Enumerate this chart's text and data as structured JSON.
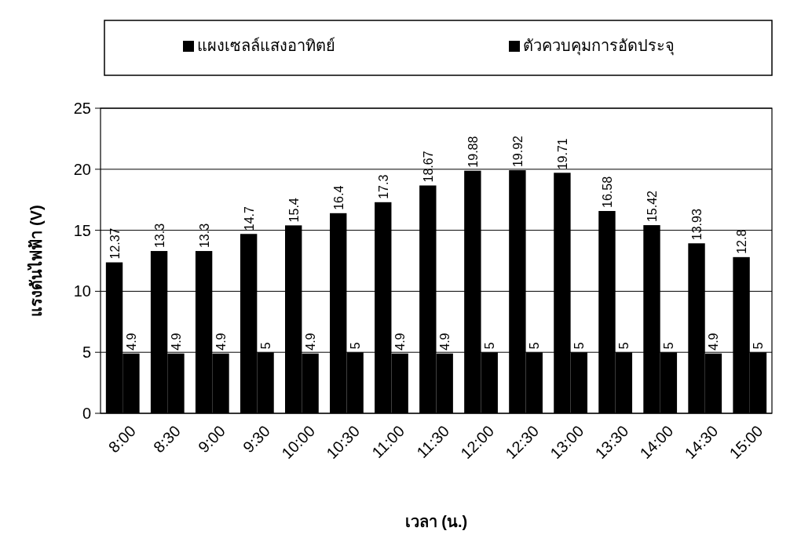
{
  "chart_data": {
    "type": "bar",
    "xlabel": "เวลา (น.)",
    "ylabel": "แรงดันไฟฟ้า (V)",
    "categories": [
      "8:00",
      "8:30",
      "9:00",
      "9:30",
      "10:00",
      "10:30",
      "11:00",
      "11:30",
      "12:00",
      "12:30",
      "13:00",
      "13:30",
      "14:00",
      "14:30",
      "15:00"
    ],
    "series": [
      {
        "name": "แผงเซลล์แสงอาทิตย์",
        "color": "#000000",
        "values": [
          12.37,
          13.3,
          13.3,
          14.7,
          15.4,
          16.4,
          17.3,
          18.67,
          19.88,
          19.92,
          19.71,
          16.58,
          15.42,
          13.93,
          12.8
        ]
      },
      {
        "name": "ตัวควบคุมการอัดประจุ",
        "color": "#000000",
        "values": [
          4.9,
          4.9,
          4.9,
          5,
          4.9,
          5,
          4.9,
          4.9,
          5,
          5,
          5,
          5,
          5,
          4.9,
          5
        ]
      }
    ],
    "ylim": [
      0,
      25
    ],
    "yticks": [
      0,
      5,
      10,
      15,
      20,
      25
    ],
    "grid": "y",
    "legend": "top",
    "data_labels": true
  }
}
